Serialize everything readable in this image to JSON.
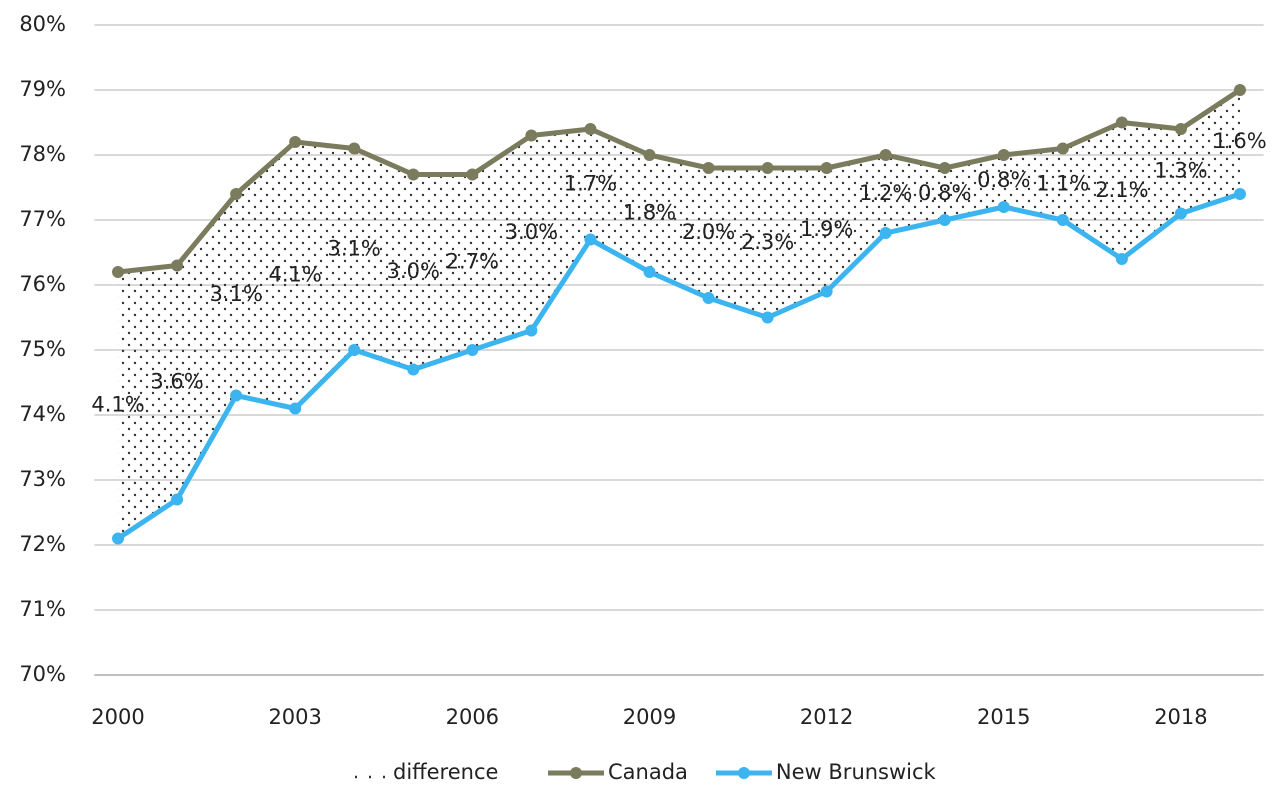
{
  "chart_data": {
    "type": "line",
    "x": [
      2000,
      2001,
      2002,
      2003,
      2004,
      2005,
      2006,
      2007,
      2008,
      2009,
      2010,
      2011,
      2012,
      2013,
      2014,
      2015,
      2016,
      2017,
      2018,
      2019
    ],
    "xlim": [
      1999.6,
      2019.4
    ],
    "xticks": [
      2000,
      2003,
      2006,
      2009,
      2012,
      2015,
      2018
    ],
    "ylim": [
      70,
      80
    ],
    "yticks": [
      {
        "value": 70,
        "label": "70%"
      },
      {
        "value": 71,
        "label": "71%"
      },
      {
        "value": 72,
        "label": "72%"
      },
      {
        "value": 73,
        "label": "73%"
      },
      {
        "value": 74,
        "label": "74%"
      },
      {
        "value": 75,
        "label": "75%"
      },
      {
        "value": 76,
        "label": "76%"
      },
      {
        "value": 77,
        "label": "77%"
      },
      {
        "value": 78,
        "label": "78%"
      },
      {
        "value": 79,
        "label": "79%"
      },
      {
        "value": 80,
        "label": "80%"
      }
    ],
    "grid": true,
    "legend": "bottom",
    "difference": {
      "name": "difference",
      "values": [
        4.1,
        3.6,
        3.1,
        4.1,
        3.1,
        3.0,
        2.7,
        3.0,
        1.7,
        1.8,
        2.0,
        2.3,
        1.9,
        1.2,
        0.8,
        0.8,
        1.1,
        2.1,
        1.3,
        1.6
      ],
      "value_labels": [
        "4.1%",
        "3.6%",
        "3.1%",
        "4.1%",
        "3.1%",
        "3.0%",
        "2.7%",
        "3.0%",
        "1.7%",
        "1.8%",
        "2.0%",
        "2.3%",
        "1.9%",
        "1.2%",
        "0.8%",
        "0.8%",
        "1.1%",
        "2.1%",
        "1.3%",
        "1.6%"
      ]
    },
    "series": [
      {
        "name": "Canada",
        "color": "#7b7b5e",
        "values": [
          76.2,
          76.3,
          77.4,
          78.2,
          78.1,
          77.7,
          77.7,
          78.3,
          78.4,
          78.0,
          77.8,
          77.8,
          77.8,
          78.0,
          77.8,
          78.0,
          78.1,
          78.5,
          78.4,
          79.0
        ]
      },
      {
        "name": "New Brunswick",
        "color": "#3cb4f0",
        "values": [
          72.1,
          72.7,
          74.3,
          74.1,
          75.0,
          74.7,
          75.0,
          75.3,
          76.7,
          76.2,
          75.8,
          75.5,
          75.9,
          76.8,
          77.0,
          77.2,
          77.0,
          76.4,
          77.1,
          77.4
        ]
      }
    ]
  }
}
